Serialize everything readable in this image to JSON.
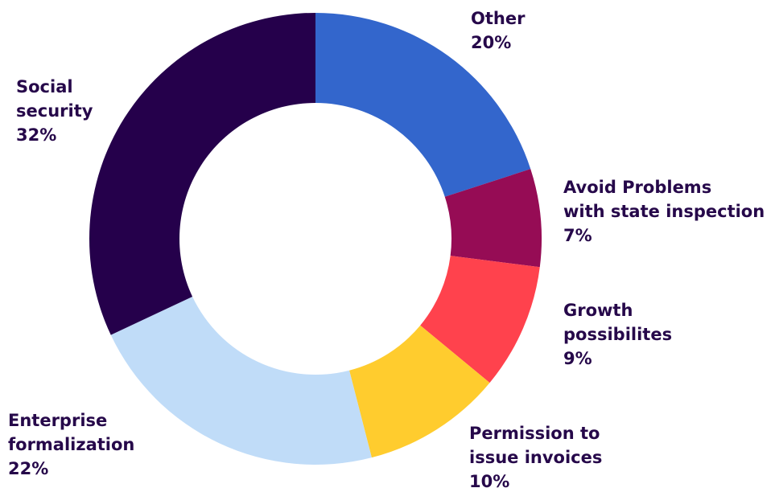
{
  "chart_data": {
    "type": "pie",
    "donut": true,
    "slices": [
      {
        "lines": [
          "Other"
        ],
        "percent_label": "20%",
        "value": 20,
        "color": "#3366cc"
      },
      {
        "lines": [
          "Avoid Problems",
          "with state inspection"
        ],
        "percent_label": "7%",
        "value": 7,
        "color": "#960c55"
      },
      {
        "lines": [
          "Growth",
          "possibilites"
        ],
        "percent_label": "9%",
        "value": 9,
        "color": "#ff424d"
      },
      {
        "lines": [
          "Permission to",
          "issue invoices"
        ],
        "percent_label": "10%",
        "value": 10,
        "color": "#ffcc2e"
      },
      {
        "lines": [
          "Enterprise",
          "formalization"
        ],
        "percent_label": "22%",
        "value": 22,
        "color": "#c0dcf8"
      },
      {
        "lines": [
          "Social",
          "security"
        ],
        "percent_label": "32%",
        "value": 32,
        "color": "#25004b"
      }
    ]
  }
}
